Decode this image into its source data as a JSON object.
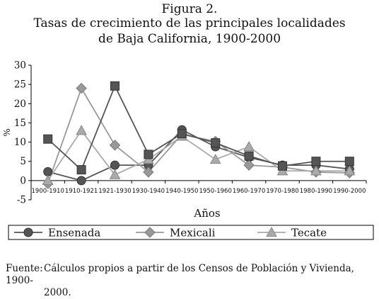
{
  "header": {
    "figure_label": "Figura 2.",
    "title_line1": "Tasas de crecimiento de las principales localidades",
    "title_line2": "de Baja California, 1900-2000"
  },
  "footer": {
    "label": "Fuente:",
    "text_line1": "Cálculos propios a partir de los Censos de Población y Vivienda, 1900-",
    "text_line2": "2000."
  },
  "chart_data": {
    "type": "line",
    "categories": [
      "1900-1910",
      "1910-1921",
      "1921-1930",
      "1930-1940",
      "1940-1950",
      "1950-1960",
      "1960-1970",
      "1970-1980",
      "1980-1990",
      "1990-2000"
    ],
    "ylabel": "%",
    "xlabel": "Años",
    "ylim": [
      -5,
      30
    ],
    "yticks": [
      30,
      25,
      20,
      15,
      10,
      5,
      0,
      -5
    ],
    "grid": false,
    "legend_position": "bottom",
    "series": [
      {
        "name": "Ensenada",
        "marker": "circle",
        "color": "#555555",
        "values": [
          2.3,
          0,
          4,
          4,
          13.2,
          8.8,
          6,
          4,
          4,
          3
        ]
      },
      {
        "name": "Mexicali",
        "marker": "diamond",
        "color": "#999999",
        "values": [
          -0.8,
          24,
          9.2,
          2.2,
          12,
          10.2,
          4,
          3.5,
          2.2,
          2
        ]
      },
      {
        "name": "Tecate",
        "marker": "triangle",
        "color": "#aaaaaa",
        "values": [
          0,
          13,
          1.5,
          5.5,
          11.5,
          5.5,
          8.8,
          2.5,
          2.5,
          2.5
        ]
      },
      {
        "name": "",
        "marker": "square",
        "color": "#555555",
        "values": [
          10.8,
          2.8,
          24.6,
          6.8,
          12.2,
          9.8,
          6.4,
          3.8,
          5,
          5
        ]
      }
    ]
  }
}
